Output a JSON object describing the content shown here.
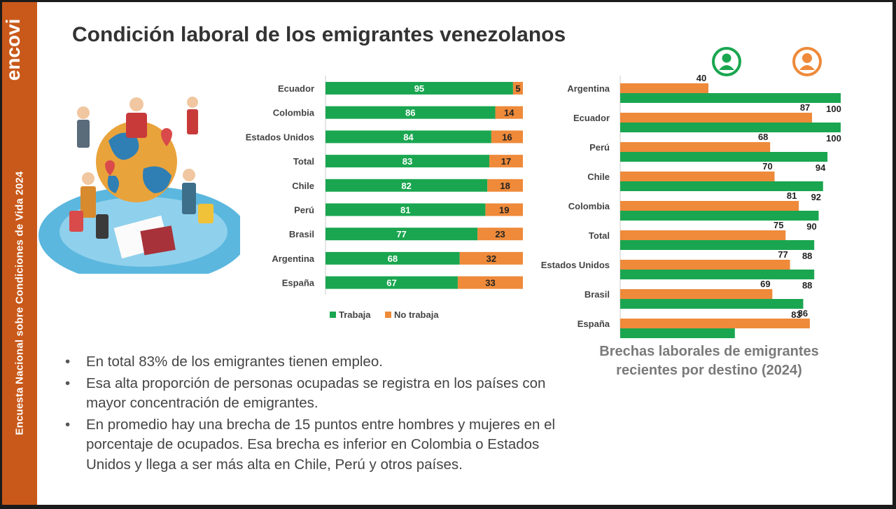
{
  "brand": {
    "logo_text": "encovi",
    "sidebar_text": "Encuesta Nacional sobre Condiciones de Vida 2024",
    "orange": "#c9591a"
  },
  "page": {
    "title": "Condición laboral de los emigrantes venezolanos"
  },
  "colors": {
    "green": "#1aa650",
    "orange": "#ee8a3a"
  },
  "chart_data": [
    {
      "type": "bar",
      "orientation": "horizontal",
      "stacked": true,
      "categories": [
        "Ecuador",
        "Colombia",
        "Estados Unidos",
        "Total",
        "Chile",
        "Perú",
        "Brasil",
        "Argentina",
        "España"
      ],
      "series": [
        {
          "name": "Trabaja",
          "color": "#1aa650",
          "values": [
            95,
            86,
            84,
            83,
            82,
            81,
            77,
            68,
            67
          ]
        },
        {
          "name": "No trabaja",
          "color": "#ee8a3a",
          "values": [
            5,
            14,
            16,
            17,
            18,
            19,
            23,
            32,
            33
          ]
        }
      ],
      "xlim": [
        0,
        100
      ],
      "legend": "bottom",
      "data_labels": true
    },
    {
      "type": "bar",
      "orientation": "horizontal",
      "grouped": true,
      "title": "Brechas laborales de emigrantes recientes por destino (2024)",
      "categories": [
        "Argentina",
        "Ecuador",
        "Perú",
        "Chile",
        "Colombia",
        "Total",
        "Estados Unidos",
        "Brasil",
        "España"
      ],
      "series": [
        {
          "icon": "woman-icon",
          "color": "#ee8a3a",
          "values": [
            40,
            87,
            68,
            70,
            81,
            75,
            77,
            69,
            86
          ]
        },
        {
          "icon": "man-icon",
          "color": "#1aa650",
          "values": [
            100,
            100,
            94,
            92,
            90,
            88,
            88,
            83,
            52
          ]
        }
      ],
      "xlim": [
        0,
        100
      ],
      "legend": "top-right",
      "data_labels": true
    }
  ],
  "bullets": [
    "En total 83% de los emigrantes tienen empleo.",
    "Esa alta proporción de personas ocupadas se registra en los países con mayor concentración de emigrantes.",
    "En promedio hay una brecha de 15 puntos entre hombres y mujeres en  el porcentaje de ocupados. Esa brecha es inferior en Colombia o Estados Unidos y llega a ser más alta en Chile, Perú y otros países."
  ]
}
